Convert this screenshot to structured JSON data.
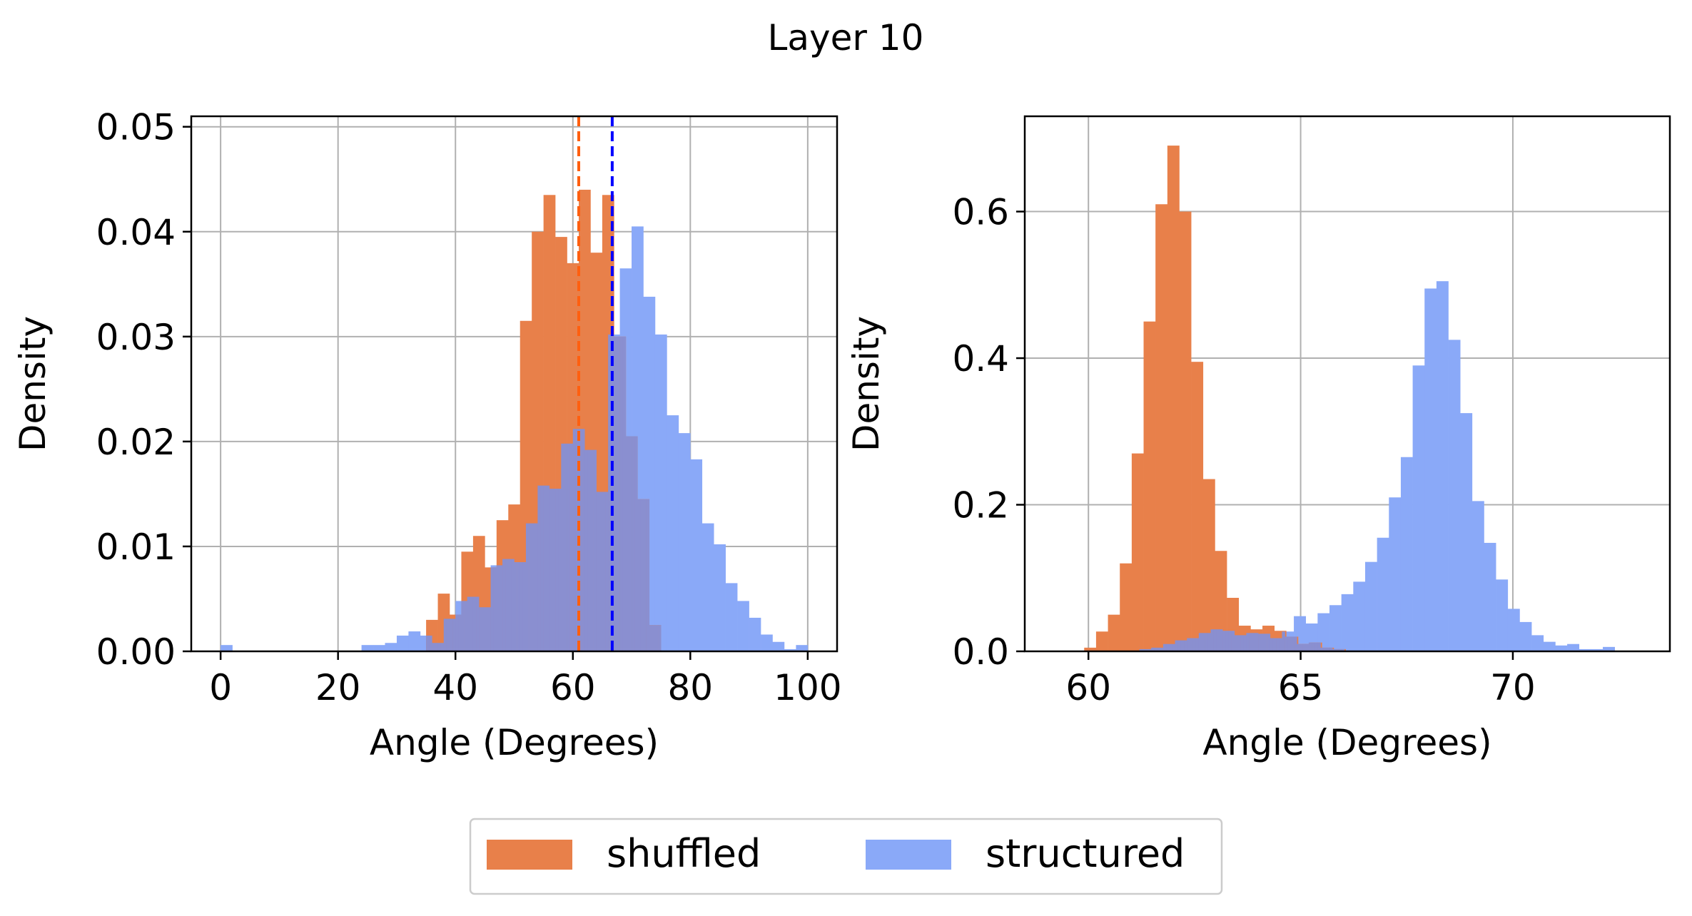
{
  "figure_title": "Layer 10",
  "colors": {
    "shuffled": "#e8804a",
    "structured": "#8aa9f8",
    "overlap": "#8a8fd0",
    "mean_shuffled": "#ff5f0f",
    "mean_structured": "#0000ff"
  },
  "legend": {
    "items": [
      {
        "label": "shuffled",
        "color": "#e8804a"
      },
      {
        "label": "structured",
        "color": "#8aa9f8"
      }
    ],
    "placement": "bottom-center"
  },
  "chart_data": [
    {
      "type": "histogram",
      "title": "",
      "xlabel": "Angle (Degrees)",
      "ylabel": "Density",
      "xlim": [
        -5,
        105
      ],
      "ylim": [
        0,
        0.051
      ],
      "xticks": [
        0,
        20,
        40,
        60,
        80,
        100
      ],
      "xtick_labels": [
        "0",
        "20",
        "40",
        "60",
        "80",
        "100"
      ],
      "yticks": [
        0,
        0.01,
        0.02,
        0.03,
        0.04,
        0.05
      ],
      "ytick_labels": [
        "0.00",
        "0.01",
        "0.02",
        "0.03",
        "0.04",
        "0.05"
      ],
      "grid": true,
      "mean_lines": [
        {
          "series": "shuffled",
          "x": 61
        },
        {
          "series": "structured",
          "x": 66.7
        }
      ],
      "series": [
        {
          "name": "shuffled",
          "bin_start": 35,
          "bin_width": 2,
          "densities": [
            0.003,
            0.0055,
            0.0035,
            0.0095,
            0.011,
            0.008,
            0.0125,
            0.014,
            0.0315,
            0.04,
            0.0435,
            0.0395,
            0.037,
            0.044,
            0.038,
            0.0435,
            0.03,
            0.0205,
            0.0145,
            0.0025
          ]
        },
        {
          "name": "structured",
          "bin_start": 0,
          "bin_width": 2,
          "densities": [
            0.0006,
            0,
            0,
            0,
            0,
            0,
            0,
            0,
            0,
            0,
            0,
            0,
            0.0006,
            0.0006,
            0.0008,
            0.0015,
            0.0019,
            0.0015,
            0.0008,
            0.0031,
            0.0048,
            0.0052,
            0.0042,
            0.0082,
            0.0088,
            0.0085,
            0.0122,
            0.0158,
            0.0155,
            0.0198,
            0.0212,
            0.0192,
            0.0152,
            0.0302,
            0.0365,
            0.0405,
            0.0338,
            0.0302,
            0.0225,
            0.0208,
            0.0183,
            0.0122,
            0.0102,
            0.0065,
            0.0048,
            0.0032,
            0.0016,
            0.0009,
            0.0002,
            0.0006
          ]
        }
      ]
    },
    {
      "type": "histogram",
      "title": "",
      "xlabel": "Angle (Degrees)",
      "ylabel": "Density",
      "xlim": [
        58.5,
        73.7
      ],
      "ylim": [
        0,
        0.73
      ],
      "xticks": [
        60,
        65,
        70
      ],
      "xtick_labels": [
        "60",
        "65",
        "70"
      ],
      "yticks": [
        0,
        0.2,
        0.4,
        0.6
      ],
      "ytick_labels": [
        "0.0",
        "0.2",
        "0.4",
        "0.6"
      ],
      "grid": true,
      "series": [
        {
          "name": "shuffled",
          "bin_start": 59.9,
          "bin_width": 0.28,
          "densities": [
            0.005,
            0.027,
            0.05,
            0.12,
            0.27,
            0.45,
            0.61,
            0.69,
            0.6,
            0.395,
            0.235,
            0.137,
            0.073,
            0.035,
            0.03,
            0.035,
            0.028,
            0.02,
            0.01,
            0.012,
            0.005,
            0.003
          ]
        },
        {
          "name": "structured",
          "bin_start": 61.2,
          "bin_width": 0.28,
          "densities": [
            0.003,
            0.005,
            0.01,
            0.015,
            0.018,
            0.025,
            0.03,
            0.028,
            0.022,
            0.025,
            0.024,
            0.018,
            0.027,
            0.048,
            0.038,
            0.052,
            0.063,
            0.078,
            0.095,
            0.122,
            0.155,
            0.21,
            0.265,
            0.39,
            0.495,
            0.505,
            0.425,
            0.325,
            0.205,
            0.148,
            0.098,
            0.058,
            0.04,
            0.022,
            0.013,
            0.008,
            0.01,
            0.003,
            0.003,
            0.006
          ]
        }
      ]
    }
  ]
}
